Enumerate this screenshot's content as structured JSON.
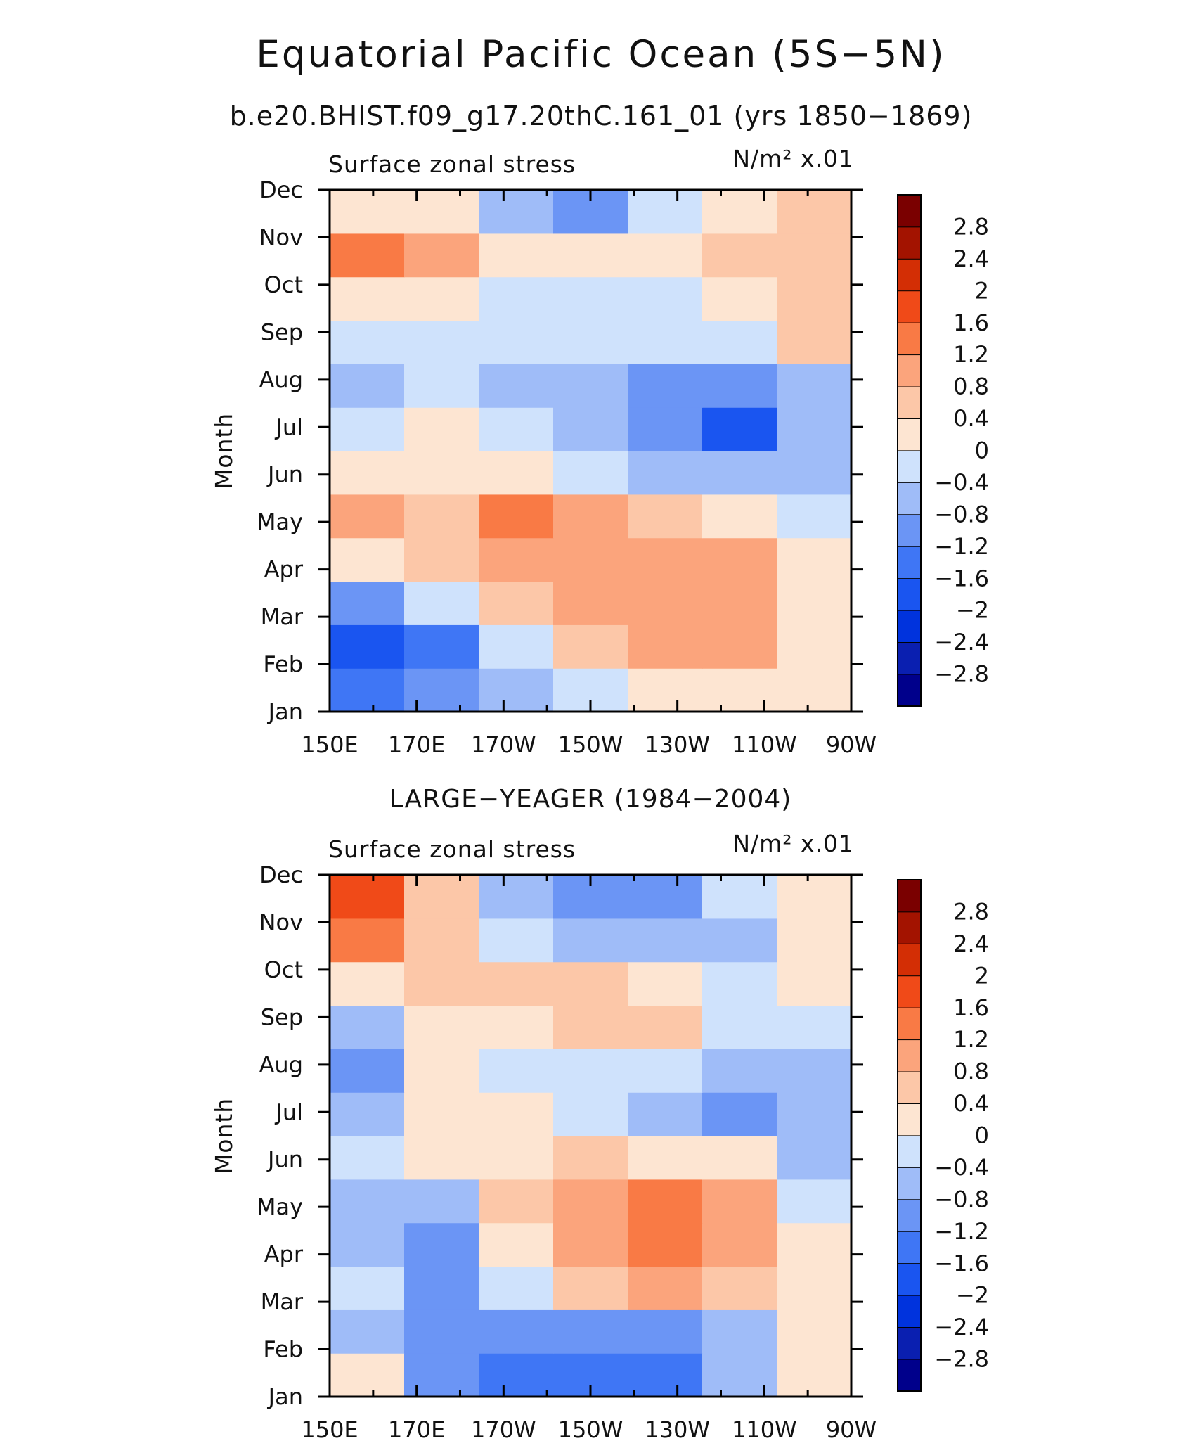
{
  "figure": {
    "title": "Equatorial Pacific Ocean (5S−5N)",
    "subtitle": "b.e20.BHIST.f09_g17.20thC.161_01 (yrs 1850−1869)"
  },
  "chart_data": [
    {
      "type": "heatmap",
      "panel_title": "",
      "variable": "Surface zonal stress",
      "units": "N/m² x.01",
      "ylabel": "Month",
      "x_ticks": [
        "150E",
        "170E",
        "170W",
        "150W",
        "130W",
        "110W",
        "90W"
      ],
      "x": [
        150,
        170,
        190,
        210,
        230,
        250,
        270
      ],
      "y_ticks": [
        "Jan",
        "Feb",
        "Mar",
        "Apr",
        "May",
        "Jun",
        "Jul",
        "Aug",
        "Sep",
        "Oct",
        "Nov",
        "Dec"
      ],
      "z": [
        [
          -1.4,
          -1.2,
          -0.6,
          -0.4,
          0.3,
          0.3,
          0.1
        ],
        [
          -1.8,
          -1.3,
          -0.2,
          0.4,
          1.0,
          1.0,
          0.1
        ],
        [
          -0.9,
          -0.3,
          0.5,
          1.0,
          1.1,
          1.1,
          0.1
        ],
        [
          0.1,
          0.5,
          0.9,
          1.0,
          1.1,
          0.9,
          0.1
        ],
        [
          1.0,
          0.7,
          1.3,
          0.8,
          0.4,
          0.2,
          -0.3
        ],
        [
          0.1,
          0.3,
          0.0,
          -0.3,
          -0.6,
          -0.8,
          -0.6
        ],
        [
          -0.2,
          0.2,
          -0.2,
          -0.7,
          -1.2,
          -1.7,
          -0.8
        ],
        [
          -0.6,
          -0.2,
          -0.6,
          -0.8,
          -0.9,
          -1.2,
          -0.7
        ],
        [
          -0.3,
          -0.2,
          -0.3,
          -0.4,
          -0.3,
          -0.2,
          0.5
        ],
        [
          0.3,
          0.1,
          -0.2,
          -0.2,
          -0.1,
          0.1,
          0.6
        ],
        [
          1.5,
          0.8,
          0.3,
          0.1,
          0.2,
          0.5,
          0.6
        ],
        [
          0.3,
          0.2,
          -0.6,
          -1.0,
          -0.3,
          0.2,
          0.4
        ]
      ],
      "color_levels": [
        -2.8,
        -2.4,
        -2.0,
        -1.6,
        -1.2,
        -0.8,
        -0.4,
        0,
        0.4,
        0.8,
        1.2,
        1.6,
        2.0,
        2.4,
        2.8
      ],
      "colorbar_labels": [
        "2.8",
        "2.4",
        "2",
        "1.6",
        "1.2",
        "0.8",
        "0.4",
        "0",
        "−0.4",
        "−0.8",
        "−1.2",
        "−1.6",
        "−2",
        "−2.4",
        "−2.8"
      ]
    },
    {
      "type": "heatmap",
      "panel_title": "LARGE−YEAGER (1984−2004)",
      "variable": "Surface zonal stress",
      "units": "N/m² x.01",
      "ylabel": "Month",
      "x_ticks": [
        "150E",
        "170E",
        "170W",
        "150W",
        "130W",
        "110W",
        "90W"
      ],
      "x": [
        150,
        170,
        190,
        210,
        230,
        250,
        270
      ],
      "y_ticks": [
        "Jan",
        "Feb",
        "Mar",
        "Apr",
        "May",
        "Jun",
        "Jul",
        "Aug",
        "Sep",
        "Oct",
        "Nov",
        "Dec"
      ],
      "z": [
        [
          0.1,
          -0.9,
          -1.4,
          -1.6,
          -1.4,
          -0.6,
          0.1
        ],
        [
          -0.5,
          -1.2,
          -1.2,
          -1.1,
          -0.9,
          -0.5,
          0.1
        ],
        [
          -0.3,
          -1.0,
          -0.3,
          0.6,
          0.8,
          0.5,
          0.1
        ],
        [
          -0.5,
          -0.9,
          0.3,
          1.0,
          1.3,
          0.9,
          0.1
        ],
        [
          -0.6,
          -0.6,
          0.6,
          1.0,
          1.2,
          1.1,
          -0.2
        ],
        [
          -0.4,
          0.0,
          0.2,
          0.4,
          0.3,
          0.0,
          -0.5
        ],
        [
          -0.5,
          0.1,
          0.0,
          -0.3,
          -0.6,
          -0.9,
          -0.6
        ],
        [
          -0.9,
          0.1,
          -0.1,
          -0.2,
          -0.4,
          -0.8,
          -0.5
        ],
        [
          -0.5,
          0.2,
          0.3,
          0.6,
          0.6,
          -0.2,
          -0.3
        ],
        [
          0.3,
          0.6,
          0.6,
          0.5,
          0.2,
          -0.3,
          0.3
        ],
        [
          1.2,
          0.6,
          -0.4,
          -0.5,
          -0.6,
          -0.5,
          0.1
        ],
        [
          1.6,
          0.4,
          -0.5,
          -0.9,
          -1.0,
          -0.3,
          0.1
        ]
      ],
      "color_levels": [
        -2.8,
        -2.4,
        -2.0,
        -1.6,
        -1.2,
        -0.8,
        -0.4,
        0,
        0.4,
        0.8,
        1.2,
        1.6,
        2.0,
        2.4,
        2.8
      ],
      "colorbar_labels": [
        "2.8",
        "2.4",
        "2",
        "1.6",
        "1.2",
        "0.8",
        "0.4",
        "0",
        "−0.4",
        "−0.8",
        "−1.2",
        "−1.6",
        "−2",
        "−2.4",
        "−2.8"
      ]
    }
  ],
  "palette": [
    "#00008b",
    "#0a1fb0",
    "#0033dd",
    "#1a55f0",
    "#3f76f5",
    "#6b95f5",
    "#9fbcf8",
    "#cfe2fc",
    "#fde5d2",
    "#fcc7a8",
    "#fba47c",
    "#f97a45",
    "#f04a18",
    "#d32e05",
    "#a31300",
    "#7a0000"
  ]
}
